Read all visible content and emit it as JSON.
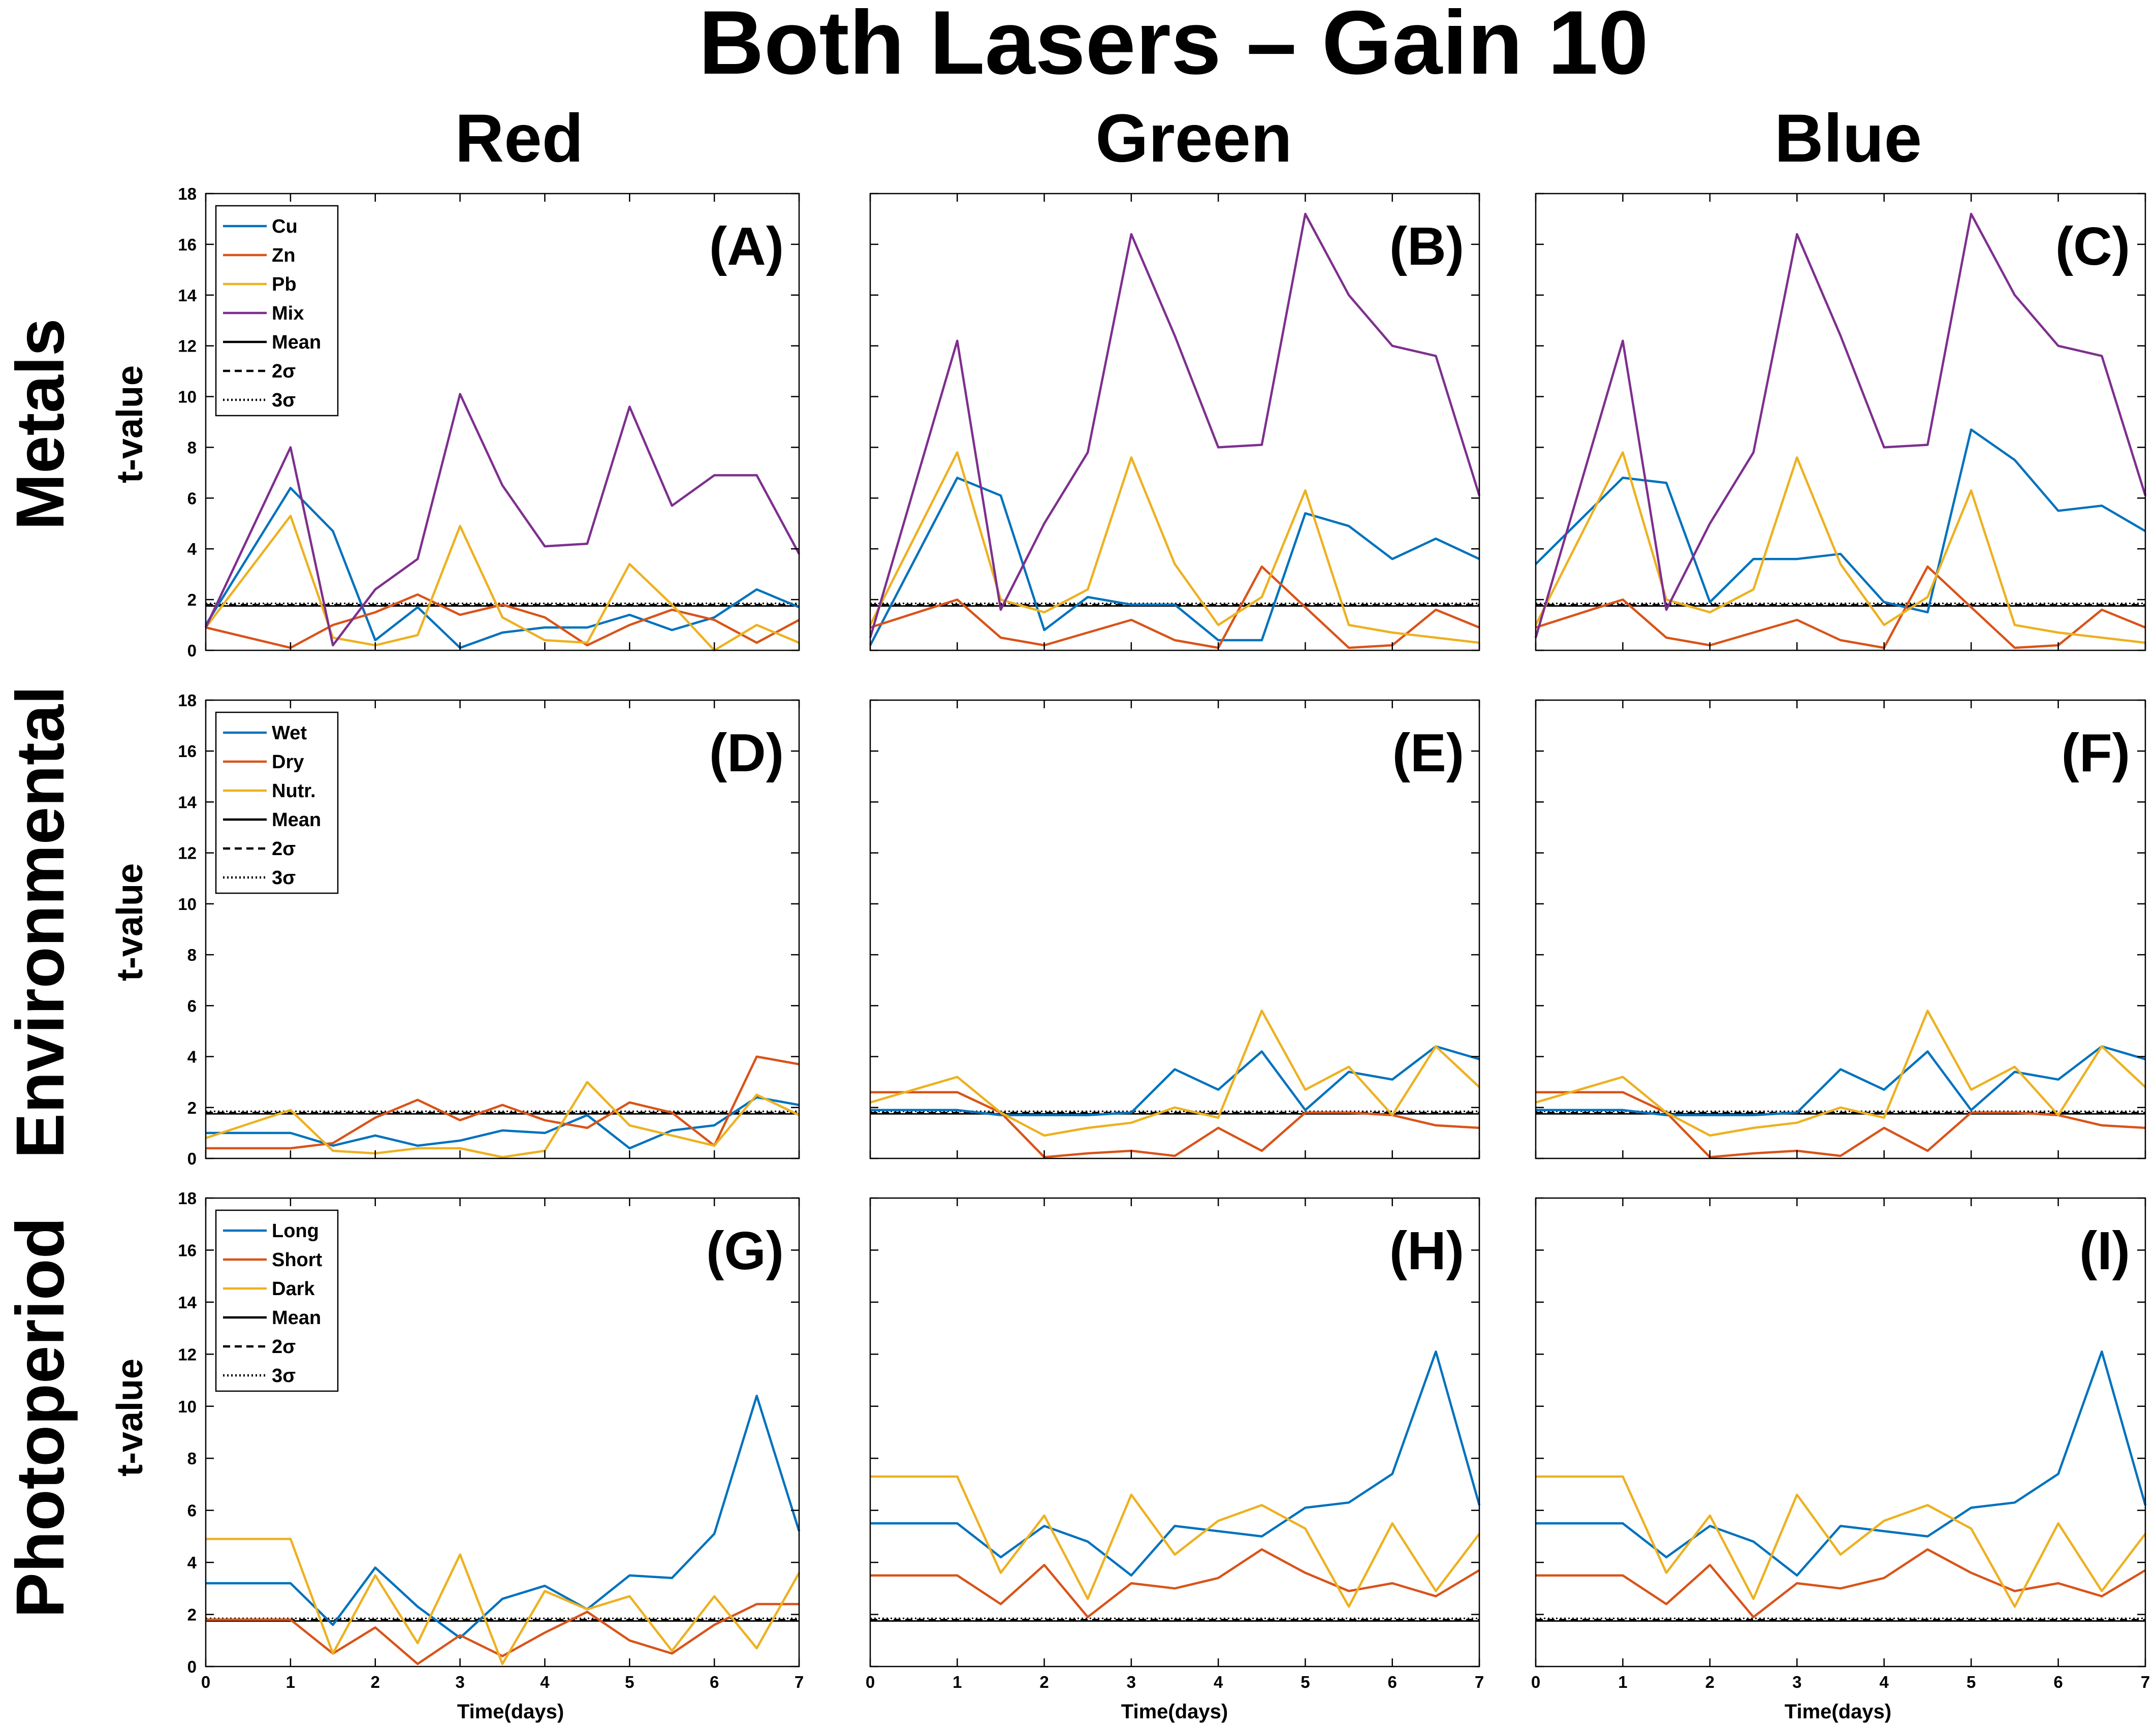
{
  "figure": {
    "title": "Both Lasers – Gain 10",
    "columns": [
      "Red",
      "Green",
      "Blue"
    ],
    "rows": [
      "Metals",
      "Environmental",
      "Photoperiod"
    ],
    "ylabel": "t-value",
    "xlabel": "Time(days)"
  },
  "chart_data": [
    {
      "type": "line",
      "panel": "(A)",
      "title": "",
      "xlabel": "",
      "ylabel": "t-value",
      "xlim": [
        0,
        7
      ],
      "ylim": [
        0,
        18
      ],
      "x": [
        0,
        1,
        1.5,
        2,
        2.5,
        3,
        3.5,
        4,
        4.5,
        5,
        5.5,
        6,
        6.5,
        7
      ],
      "legend": [
        "Cu",
        "Zn",
        "Pb",
        "Mix",
        "Mean",
        "2σ",
        "3σ"
      ],
      "legend_placement": "top-left",
      "series": [
        {
          "name": "Cu",
          "color": "#0072BD",
          "values": [
            1.0,
            6.4,
            4.7,
            0.4,
            1.7,
            0.1,
            0.7,
            0.9,
            0.9,
            1.4,
            0.8,
            1.3,
            2.4,
            1.7
          ]
        },
        {
          "name": "Zn",
          "color": "#D95319",
          "values": [
            0.9,
            0.1,
            1.0,
            1.5,
            2.2,
            1.4,
            1.8,
            1.3,
            0.2,
            1.0,
            1.6,
            1.2,
            0.3,
            1.2
          ]
        },
        {
          "name": "Pb",
          "color": "#EDB120",
          "values": [
            0.9,
            5.3,
            0.5,
            0.2,
            0.6,
            4.9,
            1.3,
            0.4,
            0.3,
            3.4,
            1.8,
            0.0,
            1.0,
            0.3
          ]
        },
        {
          "name": "Mix",
          "color": "#7E2F8E",
          "values": [
            0.9,
            8.0,
            0.2,
            2.4,
            3.6,
            10.1,
            6.5,
            4.1,
            4.2,
            9.6,
            5.7,
            6.9,
            6.9,
            3.8
          ]
        }
      ],
      "reference_lines": {
        "Mean": 1.75,
        "2σ": 1.8,
        "3σ": 1.85
      }
    },
    {
      "type": "line",
      "panel": "(B)",
      "title": "",
      "xlabel": "",
      "ylabel": "",
      "xlim": [
        0,
        7
      ],
      "ylim": [
        0,
        18
      ],
      "x": [
        0,
        1,
        1.5,
        2,
        2.5,
        3,
        3.5,
        4,
        4.5,
        5,
        5.5,
        6,
        6.5,
        7
      ],
      "series": [
        {
          "name": "Cu",
          "color": "#0072BD",
          "values": [
            0.2,
            6.8,
            6.1,
            0.8,
            2.1,
            1.8,
            1.8,
            0.4,
            0.4,
            5.4,
            4.9,
            3.6,
            4.4,
            3.6
          ]
        },
        {
          "name": "Zn",
          "color": "#D95319",
          "values": [
            0.9,
            2.0,
            0.5,
            0.2,
            0.7,
            1.2,
            0.4,
            0.1,
            3.3,
            1.7,
            0.1,
            0.2,
            1.6,
            0.9
          ]
        },
        {
          "name": "Pb",
          "color": "#EDB120",
          "values": [
            1.0,
            7.8,
            2.0,
            1.5,
            2.4,
            7.6,
            3.4,
            1.0,
            2.1,
            6.3,
            1.0,
            0.7,
            0.5,
            0.3
          ]
        },
        {
          "name": "Mix",
          "color": "#7E2F8E",
          "values": [
            0.5,
            12.2,
            1.6,
            5.0,
            7.8,
            16.4,
            12.4,
            8.0,
            8.1,
            17.2,
            14.0,
            12.0,
            11.6,
            6.1
          ]
        }
      ],
      "reference_lines": {
        "Mean": 1.75,
        "2σ": 1.8,
        "3σ": 1.85
      }
    },
    {
      "type": "line",
      "panel": "(C)",
      "title": "",
      "xlabel": "",
      "ylabel": "",
      "xlim": [
        0,
        7
      ],
      "ylim": [
        0,
        18
      ],
      "x": [
        0,
        1,
        1.5,
        2,
        2.5,
        3,
        3.5,
        4,
        4.5,
        5,
        5.5,
        6,
        6.5,
        7
      ],
      "series": [
        {
          "name": "Cu",
          "color": "#0072BD",
          "values": [
            3.4,
            6.8,
            6.6,
            1.9,
            3.6,
            3.6,
            3.8,
            1.9,
            1.5,
            8.7,
            7.5,
            5.5,
            5.7,
            4.7
          ]
        },
        {
          "name": "Zn",
          "color": "#D95319",
          "values": [
            0.9,
            2.0,
            0.5,
            0.2,
            0.7,
            1.2,
            0.4,
            0.1,
            3.3,
            1.7,
            0.1,
            0.2,
            1.6,
            0.9
          ]
        },
        {
          "name": "Pb",
          "color": "#EDB120",
          "values": [
            1.0,
            7.8,
            2.0,
            1.5,
            2.4,
            7.6,
            3.4,
            1.0,
            2.1,
            6.3,
            1.0,
            0.7,
            0.5,
            0.3
          ]
        },
        {
          "name": "Mix",
          "color": "#7E2F8E",
          "values": [
            0.5,
            12.2,
            1.6,
            5.0,
            7.8,
            16.4,
            12.4,
            8.0,
            8.1,
            17.2,
            14.0,
            12.0,
            11.6,
            6.1
          ]
        }
      ],
      "reference_lines": {
        "Mean": 1.75,
        "2σ": 1.8,
        "3σ": 1.85
      }
    },
    {
      "type": "line",
      "panel": "(D)",
      "title": "",
      "xlabel": "",
      "ylabel": "t-value",
      "xlim": [
        0,
        7
      ],
      "ylim": [
        0,
        18
      ],
      "x": [
        0,
        1,
        1.5,
        2,
        2.5,
        3,
        3.5,
        4,
        4.5,
        5,
        5.5,
        6,
        6.5,
        7
      ],
      "legend": [
        "Wet",
        "Dry",
        "Nutr.",
        "Mean",
        "2σ",
        "3σ"
      ],
      "legend_placement": "top-left",
      "series": [
        {
          "name": "Wet",
          "color": "#0072BD",
          "values": [
            1.0,
            1.0,
            0.5,
            0.9,
            0.5,
            0.7,
            1.1,
            1.0,
            1.7,
            0.4,
            1.1,
            1.3,
            2.4,
            2.1
          ]
        },
        {
          "name": "Dry",
          "color": "#D95319",
          "values": [
            0.4,
            0.4,
            0.6,
            1.6,
            2.3,
            1.5,
            2.1,
            1.5,
            1.2,
            2.2,
            1.8,
            0.5,
            4.0,
            3.7
          ]
        },
        {
          "name": "Nutr.",
          "color": "#EDB120",
          "values": [
            0.8,
            1.9,
            0.3,
            0.2,
            0.4,
            0.4,
            0.05,
            0.3,
            3.0,
            1.3,
            0.9,
            0.5,
            2.5,
            1.7
          ]
        }
      ],
      "reference_lines": {
        "Mean": 1.75,
        "2σ": 1.8,
        "3σ": 1.85
      }
    },
    {
      "type": "line",
      "panel": "(E)",
      "title": "",
      "xlabel": "",
      "ylabel": "",
      "xlim": [
        0,
        7
      ],
      "ylim": [
        0,
        18
      ],
      "x": [
        0,
        1,
        1.5,
        2,
        2.5,
        3,
        3.5,
        4,
        4.5,
        5,
        5.5,
        6,
        6.5,
        7
      ],
      "series": [
        {
          "name": "Wet",
          "color": "#0072BD",
          "values": [
            1.9,
            1.9,
            1.7,
            1.7,
            1.7,
            1.8,
            3.5,
            2.7,
            4.2,
            1.9,
            3.4,
            3.1,
            4.4,
            3.9
          ]
        },
        {
          "name": "Dry",
          "color": "#D95319",
          "values": [
            2.6,
            2.6,
            1.8,
            0.05,
            0.2,
            0.3,
            0.1,
            1.2,
            0.3,
            1.8,
            1.8,
            1.7,
            1.3,
            1.2
          ]
        },
        {
          "name": "Nutr.",
          "color": "#EDB120",
          "values": [
            2.2,
            3.2,
            1.8,
            0.9,
            1.2,
            1.4,
            2.0,
            1.6,
            5.8,
            2.7,
            3.6,
            1.7,
            4.4,
            2.8
          ]
        }
      ],
      "reference_lines": {
        "Mean": 1.75,
        "2σ": 1.8,
        "3σ": 1.85
      }
    },
    {
      "type": "line",
      "panel": "(F)",
      "title": "",
      "xlabel": "",
      "ylabel": "",
      "xlim": [
        0,
        7
      ],
      "ylim": [
        0,
        18
      ],
      "x": [
        0,
        1,
        1.5,
        2,
        2.5,
        3,
        3.5,
        4,
        4.5,
        5,
        5.5,
        6,
        6.5,
        7
      ],
      "series": [
        {
          "name": "Wet",
          "color": "#0072BD",
          "values": [
            1.9,
            1.9,
            1.7,
            1.7,
            1.7,
            1.8,
            3.5,
            2.7,
            4.2,
            1.9,
            3.4,
            3.1,
            4.4,
            3.9
          ]
        },
        {
          "name": "Dry",
          "color": "#D95319",
          "values": [
            2.6,
            2.6,
            1.8,
            0.05,
            0.2,
            0.3,
            0.1,
            1.2,
            0.3,
            1.8,
            1.8,
            1.7,
            1.3,
            1.2
          ]
        },
        {
          "name": "Nutr.",
          "color": "#EDB120",
          "values": [
            2.2,
            3.2,
            1.8,
            0.9,
            1.2,
            1.4,
            2.0,
            1.6,
            5.8,
            2.7,
            3.6,
            1.7,
            4.4,
            2.8
          ]
        }
      ],
      "reference_lines": {
        "Mean": 1.75,
        "2σ": 1.8,
        "3σ": 1.85
      }
    },
    {
      "type": "line",
      "panel": "(G)",
      "title": "",
      "xlabel": "Time(days)",
      "ylabel": "t-value",
      "xlim": [
        0,
        7
      ],
      "ylim": [
        0,
        18
      ],
      "x": [
        0,
        1,
        1.5,
        2,
        2.5,
        3,
        3.5,
        4,
        4.5,
        5,
        5.5,
        6,
        6.5,
        7
      ],
      "legend": [
        "Long",
        "Short",
        "Dark",
        "Mean",
        "2σ",
        "3σ"
      ],
      "legend_placement": "top-left",
      "series": [
        {
          "name": "Long",
          "color": "#0072BD",
          "values": [
            3.2,
            3.2,
            1.6,
            3.8,
            2.3,
            1.1,
            2.6,
            3.1,
            2.2,
            3.5,
            3.4,
            5.1,
            10.4,
            5.2
          ]
        },
        {
          "name": "Short",
          "color": "#D95319",
          "values": [
            1.8,
            1.8,
            0.5,
            1.5,
            0.1,
            1.2,
            0.4,
            1.3,
            2.1,
            1.0,
            0.5,
            1.6,
            2.4,
            2.4
          ]
        },
        {
          "name": "Dark",
          "color": "#EDB120",
          "values": [
            4.9,
            4.9,
            0.5,
            3.5,
            0.9,
            4.3,
            0.1,
            2.9,
            2.2,
            2.7,
            0.6,
            2.7,
            0.7,
            3.6
          ]
        }
      ],
      "reference_lines": {
        "Mean": 1.75,
        "2σ": 1.8,
        "3σ": 1.85
      }
    },
    {
      "type": "line",
      "panel": "(H)",
      "title": "",
      "xlabel": "Time(days)",
      "ylabel": "",
      "xlim": [
        0,
        7
      ],
      "ylim": [
        0,
        18
      ],
      "x": [
        0,
        1,
        1.5,
        2,
        2.5,
        3,
        3.5,
        4,
        4.5,
        5,
        5.5,
        6,
        6.5,
        7
      ],
      "series": [
        {
          "name": "Long",
          "color": "#0072BD",
          "values": [
            5.5,
            5.5,
            4.2,
            5.4,
            4.8,
            3.5,
            5.4,
            5.2,
            5.0,
            6.1,
            6.3,
            7.4,
            12.1,
            6.2
          ]
        },
        {
          "name": "Short",
          "color": "#D95319",
          "values": [
            3.5,
            3.5,
            2.4,
            3.9,
            1.9,
            3.2,
            3.0,
            3.4,
            4.5,
            3.6,
            2.9,
            3.2,
            2.7,
            3.7
          ]
        },
        {
          "name": "Dark",
          "color": "#EDB120",
          "values": [
            7.3,
            7.3,
            3.6,
            5.8,
            2.6,
            6.6,
            4.3,
            5.6,
            6.2,
            5.3,
            2.3,
            5.5,
            2.9,
            5.1
          ]
        }
      ],
      "reference_lines": {
        "Mean": 1.75,
        "2σ": 1.8,
        "3σ": 1.85
      }
    },
    {
      "type": "line",
      "panel": "(I)",
      "title": "",
      "xlabel": "Time(days)",
      "ylabel": "",
      "xlim": [
        0,
        7
      ],
      "ylim": [
        0,
        18
      ],
      "x": [
        0,
        1,
        1.5,
        2,
        2.5,
        3,
        3.5,
        4,
        4.5,
        5,
        5.5,
        6,
        6.5,
        7
      ],
      "series": [
        {
          "name": "Long",
          "color": "#0072BD",
          "values": [
            5.5,
            5.5,
            4.2,
            5.4,
            4.8,
            3.5,
            5.4,
            5.2,
            5.0,
            6.1,
            6.3,
            7.4,
            12.1,
            6.2
          ]
        },
        {
          "name": "Short",
          "color": "#D95319",
          "values": [
            3.5,
            3.5,
            2.4,
            3.9,
            1.9,
            3.2,
            3.0,
            3.4,
            4.5,
            3.6,
            2.9,
            3.2,
            2.7,
            3.7
          ]
        },
        {
          "name": "Dark",
          "color": "#EDB120",
          "values": [
            7.3,
            7.3,
            3.6,
            5.8,
            2.6,
            6.6,
            4.3,
            5.6,
            6.2,
            5.3,
            2.3,
            5.5,
            2.9,
            5.1
          ]
        }
      ],
      "reference_lines": {
        "Mean": 1.75,
        "2σ": 1.8,
        "3σ": 1.85
      }
    }
  ]
}
